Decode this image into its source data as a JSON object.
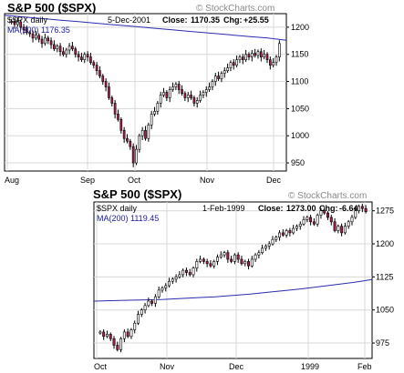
{
  "chart_data": [
    {
      "type": "candlestick",
      "title": "S&P 500 ($SPX)",
      "watermark": "© StockCharts.com",
      "series_label": "$SPX daily",
      "date_label": "5-Dec-2001",
      "close_label": "Close:",
      "close_value": "1170.35",
      "change_label": "Chg:",
      "change_value": "+25.55",
      "ma_label": "MA(200) 1176.35",
      "x_ticks": [
        "Aug",
        "Sep",
        "Oct",
        "Nov",
        "Dec"
      ],
      "y_ticks": [
        950,
        1000,
        1050,
        1100,
        1150,
        1200
      ],
      "ylim": [
        935,
        1225
      ],
      "up_color": "#ffffff",
      "down_color": "#aa1e45",
      "ma_color": "#2b2bb0",
      "ma_values": [
        1222,
        1219,
        1216,
        1213,
        1210,
        1207,
        1204,
        1201,
        1198,
        1195,
        1192,
        1189,
        1186,
        1183,
        1180,
        1176
      ],
      "close_values": [
        1211,
        1205,
        1210,
        1200,
        1195,
        1190,
        1188,
        1180,
        1185,
        1178,
        1170,
        1180,
        1175,
        1168,
        1160,
        1165,
        1155,
        1150,
        1158,
        1165,
        1160,
        1150,
        1145,
        1140,
        1150,
        1145,
        1135,
        1130,
        1120,
        1110,
        1100,
        1090,
        1070,
        1060,
        1040,
        1030,
        1010,
        995,
        990,
        980,
        950,
        975,
        1000,
        1010,
        995,
        1020,
        1040,
        1045,
        1060,
        1075,
        1080,
        1070,
        1085,
        1090,
        1095,
        1085,
        1078,
        1070,
        1075,
        1070,
        1060,
        1065,
        1075,
        1080,
        1085,
        1090,
        1100,
        1110,
        1105,
        1115,
        1120,
        1125,
        1135,
        1130,
        1140,
        1145,
        1140,
        1150,
        1145,
        1152,
        1148,
        1155,
        1145,
        1150,
        1140,
        1130,
        1135,
        1145,
        1170
      ]
    },
    {
      "type": "candlestick",
      "title": "S&P 500 ($SPX)",
      "watermark": "© StockCharts.com",
      "series_label": "$SPX daily",
      "date_label": "1-Feb-1999",
      "close_label": "Close:",
      "close_value": "1273.00",
      "change_label": "Chg:",
      "change_value": "-6.64",
      "ma_label": "MA(200) 1119.45",
      "x_ticks": [
        "Oct",
        "Nov",
        "Dec",
        "1999",
        "Feb"
      ],
      "y_ticks": [
        975,
        1050,
        1125,
        1200,
        1275
      ],
      "ylim": [
        940,
        1295
      ],
      "up_color": "#ffffff",
      "down_color": "#aa1e45",
      "ma_color": "#2b2bb0",
      "ma_values": [
        1070,
        1071,
        1072,
        1073,
        1074,
        1076,
        1078,
        1080,
        1083,
        1086,
        1090,
        1094,
        1098,
        1103,
        1108,
        1113,
        1119
      ],
      "close_values": [
        1000,
        990,
        995,
        985,
        970,
        960,
        985,
        1000,
        990,
        1005,
        1020,
        1040,
        1050,
        1060,
        1070,
        1065,
        1080,
        1095,
        1100,
        1105,
        1115,
        1120,
        1125,
        1130,
        1140,
        1135,
        1130,
        1145,
        1160,
        1165,
        1160,
        1155,
        1150,
        1160,
        1170,
        1175,
        1180,
        1165,
        1160,
        1175,
        1165,
        1155,
        1160,
        1150,
        1165,
        1175,
        1180,
        1190,
        1195,
        1200,
        1210,
        1215,
        1225,
        1220,
        1230,
        1225,
        1235,
        1240,
        1245,
        1255,
        1260,
        1250,
        1245,
        1265,
        1275,
        1270,
        1260,
        1250,
        1230,
        1240,
        1225,
        1240,
        1250,
        1260,
        1275,
        1285,
        1280,
        1273
      ]
    }
  ]
}
